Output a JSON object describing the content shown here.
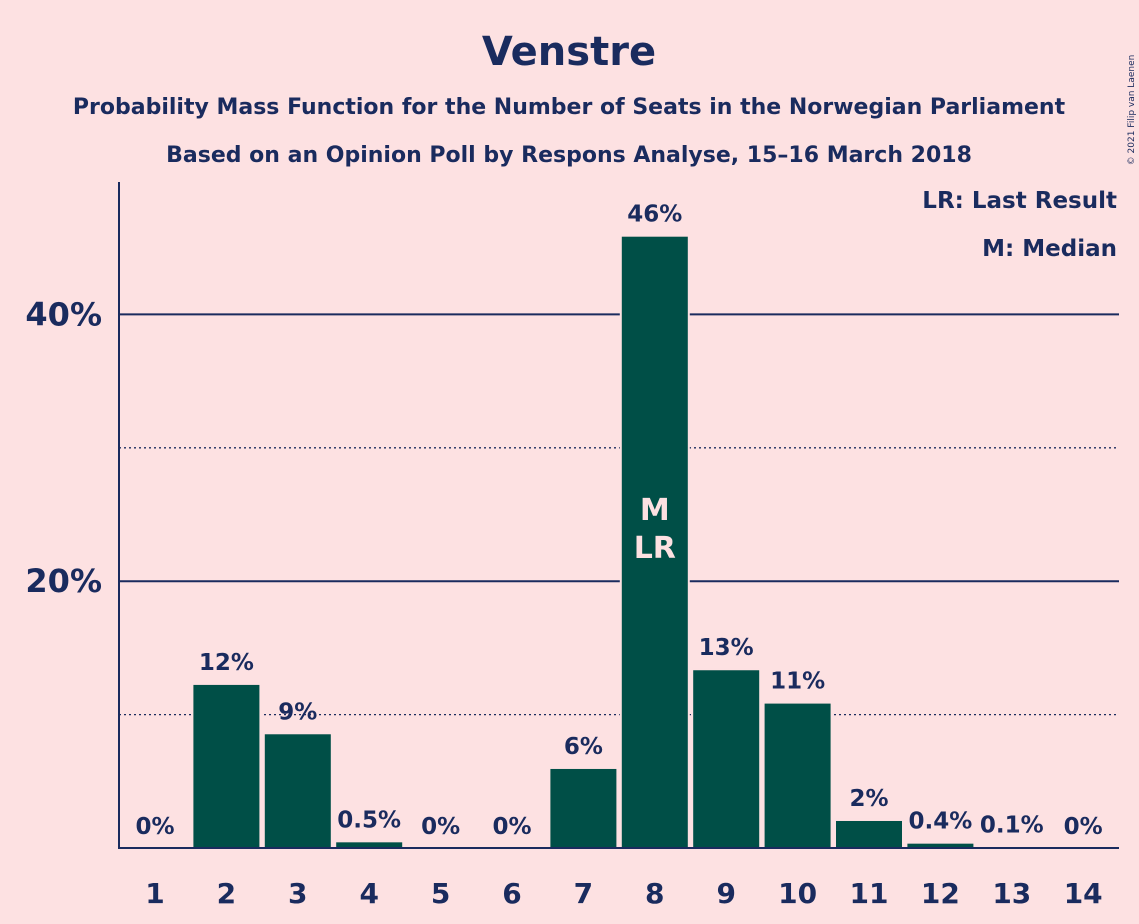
{
  "chart_data": {
    "type": "bar",
    "title": "Venstre",
    "subtitle_1": "Probability Mass Function for the Number of Seats in the Norwegian Parliament",
    "subtitle_2": "Based on an Opinion Poll by Respons Analyse, 15–16 March 2018",
    "copyright": "© 2021 Filip van Laenen",
    "legend": [
      "LR: Last Result",
      "M: Median"
    ],
    "legend_position": "top-right",
    "categories": [
      "1",
      "2",
      "3",
      "4",
      "5",
      "6",
      "7",
      "8",
      "9",
      "10",
      "11",
      "12",
      "13",
      "14"
    ],
    "values": [
      0,
      12.3,
      8.6,
      0.5,
      0,
      0,
      6.0,
      45.9,
      13.4,
      10.9,
      2.1,
      0.4,
      0.1,
      0
    ],
    "data_labels": [
      "0%",
      "12%",
      "9%",
      "0.5%",
      "0%",
      "0%",
      "6%",
      "46%",
      "13%",
      "11%",
      "2%",
      "0.4%",
      "0.1%",
      "0%"
    ],
    "bar_annotations": {
      "7": [
        "M",
        "LR"
      ]
    },
    "ylim": [
      0,
      50
    ],
    "yticks": [
      20,
      40
    ],
    "ytick_labels": [
      "20%",
      "40%"
    ],
    "grid_dotted": [
      10,
      30
    ],
    "bar_color": "#004F47",
    "text_color": "#1A2B5E",
    "background_color": "#FDE1E2"
  }
}
